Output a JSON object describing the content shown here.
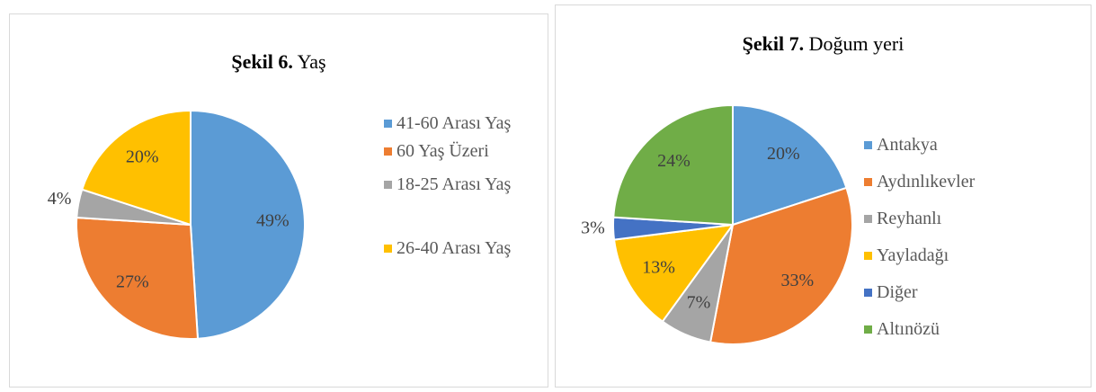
{
  "chart_data": [
    {
      "type": "pie",
      "figure_label": "Şekil 6.",
      "title": "Yaş",
      "categories": [
        "41-60 Arası Yaş",
        "60 Yaş Üzeri",
        "18-25 Arası Yaş",
        "26-40 Arası Yaş"
      ],
      "values": [
        49,
        27,
        4,
        20
      ],
      "value_labels": [
        "49%",
        "27%",
        "4%",
        "20%"
      ],
      "colors": [
        "#5b9bd5",
        "#ed7d31",
        "#a5a5a5",
        "#ffc000"
      ],
      "legend": "right"
    },
    {
      "type": "pie",
      "figure_label": "Şekil 7.",
      "title": "Doğum yeri",
      "categories": [
        "Antakya",
        "Aydınlıkevler",
        "Reyhanlı",
        "Yayladağı",
        "Diğer",
        "Altınözü"
      ],
      "values": [
        20,
        33,
        7,
        13,
        3,
        24
      ],
      "value_labels": [
        "20%",
        "33%",
        "7%",
        "13%",
        "3%",
        "24%"
      ],
      "colors": [
        "#5b9bd5",
        "#ed7d31",
        "#a5a5a5",
        "#ffc000",
        "#4472c4",
        "#70ad47"
      ],
      "legend": "right"
    }
  ]
}
